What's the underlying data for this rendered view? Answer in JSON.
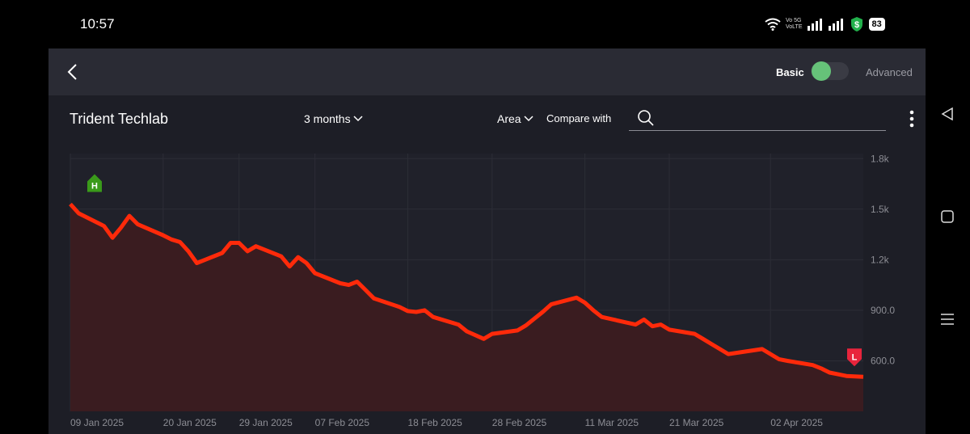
{
  "status_bar": {
    "time": "10:57",
    "network_label_1": "Vo 5G",
    "network_label_2": "VoLTE",
    "battery": "83"
  },
  "header": {
    "basic_label": "Basic",
    "advanced_label": "Advanced",
    "toggle_on": true,
    "toggle_color": "#66c279"
  },
  "toolbar": {
    "stock_name": "Trident Techlab",
    "period_label": "3 months",
    "chart_type_label": "Area",
    "compare_label": "Compare with",
    "search_placeholder": ""
  },
  "chart_data": {
    "type": "area",
    "line_color": "#ff2a0a",
    "fill_color": "#3a1c20",
    "high_marker_color": "#3a9a1a",
    "low_marker_color": "#e8243c",
    "high_marker_label": "H",
    "low_marker_label": "L",
    "y_ticks": [
      "1.8k",
      "1.5k",
      "1.2k",
      "900.0",
      "600.0"
    ],
    "y_tick_values": [
      1800,
      1500,
      1200,
      900,
      600
    ],
    "ylim": [
      300,
      1830
    ],
    "x_ticks": [
      "09 Jan 2025",
      "20 Jan 2025",
      "29 Jan 2025",
      "07 Feb 2025",
      "18 Feb 2025",
      "28 Feb 2025",
      "11 Mar 2025",
      "21 Mar 2025",
      "02 Apr 2025"
    ],
    "x_tick_values": [
      "2025-01-09",
      "2025-01-20",
      "2025-01-29",
      "2025-02-07",
      "2025-02-18",
      "2025-02-28",
      "2025-03-11",
      "2025-03-21",
      "2025-04-02"
    ],
    "xlim": [
      "2025-01-09",
      "2025-04-13"
    ],
    "x": [
      "2025-01-09",
      "2025-01-10",
      "2025-01-13",
      "2025-01-14",
      "2025-01-15",
      "2025-01-16",
      "2025-01-17",
      "2025-01-20",
      "2025-01-21",
      "2025-01-22",
      "2025-01-23",
      "2025-01-24",
      "2025-01-27",
      "2025-01-28",
      "2025-01-29",
      "2025-01-30",
      "2025-01-31",
      "2025-02-03",
      "2025-02-04",
      "2025-02-05",
      "2025-02-06",
      "2025-02-07",
      "2025-02-10",
      "2025-02-11",
      "2025-02-12",
      "2025-02-13",
      "2025-02-14",
      "2025-02-17",
      "2025-02-18",
      "2025-02-19",
      "2025-02-20",
      "2025-02-21",
      "2025-02-24",
      "2025-02-25",
      "2025-02-27",
      "2025-02-28",
      "2025-03-03",
      "2025-03-04",
      "2025-03-05",
      "2025-03-06",
      "2025-03-07",
      "2025-03-10",
      "2025-03-11",
      "2025-03-12",
      "2025-03-13",
      "2025-03-17",
      "2025-03-18",
      "2025-03-19",
      "2025-03-20",
      "2025-03-21",
      "2025-03-24",
      "2025-03-25",
      "2025-03-26",
      "2025-03-27",
      "2025-03-28",
      "2025-04-01",
      "2025-04-02",
      "2025-04-03",
      "2025-04-04",
      "2025-04-07",
      "2025-04-08",
      "2025-04-09",
      "2025-04-10",
      "2025-04-11",
      "2025-04-13"
    ],
    "values": [
      1530,
      1475,
      1400,
      1330,
      1390,
      1460,
      1410,
      1345,
      1320,
      1305,
      1250,
      1180,
      1240,
      1300,
      1300,
      1250,
      1280,
      1220,
      1160,
      1215,
      1180,
      1120,
      1060,
      1050,
      1070,
      1020,
      970,
      920,
      895,
      890,
      900,
      860,
      815,
      775,
      730,
      760,
      780,
      810,
      850,
      890,
      935,
      975,
      945,
      900,
      860,
      815,
      845,
      805,
      815,
      785,
      760,
      730,
      700,
      670,
      640,
      670,
      640,
      610,
      600,
      575,
      555,
      530,
      520,
      510,
      505
    ]
  }
}
